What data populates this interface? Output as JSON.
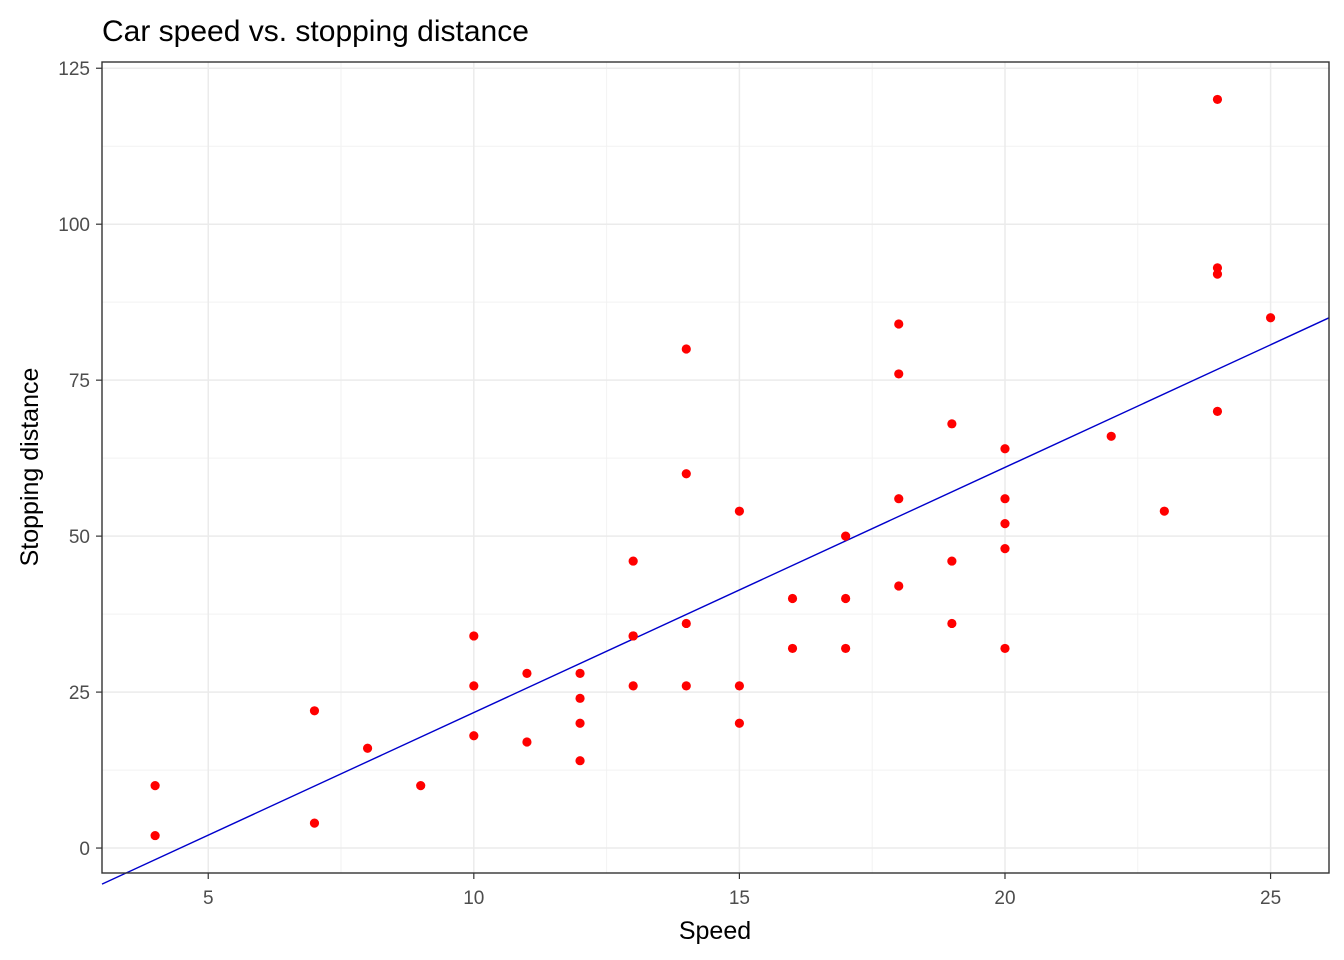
{
  "chart_data": {
    "type": "scatter",
    "title": "Car speed vs. stopping distance",
    "xlabel": "Speed",
    "ylabel": "Stopping distance",
    "xlim": [
      3,
      26.1
    ],
    "ylim": [
      -4,
      126
    ],
    "xticks": [
      5,
      10,
      15,
      20,
      25
    ],
    "yticks": [
      0,
      25,
      50,
      75,
      100,
      125
    ],
    "grid": true,
    "legend": "none",
    "point_color": "#ff0000",
    "line_color": "#0000cc",
    "regression_line": {
      "intercept": -17.58,
      "slope": 3.93
    },
    "points": [
      [
        4,
        2
      ],
      [
        4,
        10
      ],
      [
        7,
        4
      ],
      [
        7,
        22
      ],
      [
        8,
        16
      ],
      [
        9,
        10
      ],
      [
        10,
        18
      ],
      [
        10,
        26
      ],
      [
        10,
        34
      ],
      [
        11,
        17
      ],
      [
        11,
        28
      ],
      [
        12,
        14
      ],
      [
        12,
        20
      ],
      [
        12,
        24
      ],
      [
        12,
        28
      ],
      [
        13,
        26
      ],
      [
        13,
        34
      ],
      [
        13,
        34
      ],
      [
        13,
        46
      ],
      [
        14,
        26
      ],
      [
        14,
        36
      ],
      [
        14,
        60
      ],
      [
        14,
        80
      ],
      [
        15,
        20
      ],
      [
        15,
        26
      ],
      [
        15,
        54
      ],
      [
        16,
        32
      ],
      [
        16,
        40
      ],
      [
        17,
        32
      ],
      [
        17,
        40
      ],
      [
        17,
        50
      ],
      [
        18,
        42
      ],
      [
        18,
        56
      ],
      [
        18,
        76
      ],
      [
        18,
        84
      ],
      [
        19,
        36
      ],
      [
        19,
        46
      ],
      [
        19,
        68
      ],
      [
        20,
        32
      ],
      [
        20,
        48
      ],
      [
        20,
        52
      ],
      [
        20,
        56
      ],
      [
        20,
        64
      ],
      [
        22,
        66
      ],
      [
        23,
        54
      ],
      [
        24,
        70
      ],
      [
        24,
        92
      ],
      [
        24,
        93
      ],
      [
        24,
        120
      ],
      [
        25,
        85
      ]
    ]
  }
}
